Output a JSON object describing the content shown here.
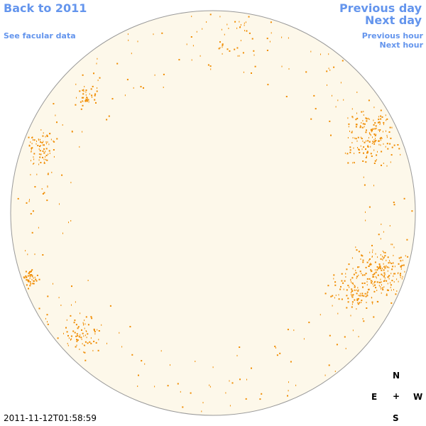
{
  "nav": {
    "back_year": "Back to 2011",
    "facular_data": "See facular data",
    "previous_day": "Previous day",
    "next_day": "Next day",
    "previous_hour": "Previous hour",
    "next_hour": "Next hour"
  },
  "compass": {
    "north": "N",
    "east": "E",
    "center": "+",
    "west": "W",
    "south": "S"
  },
  "timestamp": "2011-11-12T01:58:59"
}
